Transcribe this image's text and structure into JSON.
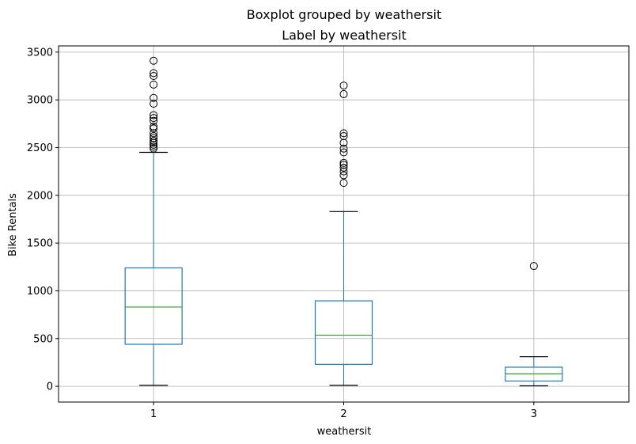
{
  "chart_data": {
    "type": "boxplot",
    "suptitle": "Boxplot grouped by weathersit",
    "title": "Label by weathersit",
    "xlabel": "weathersit",
    "ylabel": "Bike Rentals",
    "grid": true,
    "ylim": [
      -165,
      3565
    ],
    "yticks": [
      0,
      500,
      1000,
      1500,
      2000,
      2500,
      3000,
      3500
    ],
    "categories": [
      "1",
      "2",
      "3"
    ],
    "colors": {
      "box": "#1f77b4",
      "median": "#2ca02c",
      "grid": "#b0b0b0",
      "axis": "#000000"
    },
    "boxes": [
      {
        "category": "1",
        "whisker_low": 10,
        "q1": 440,
        "median": 830,
        "q3": 1240,
        "whisker_high": 2450,
        "outliers": [
          2490,
          2510,
          2530,
          2550,
          2570,
          2600,
          2620,
          2650,
          2700,
          2720,
          2780,
          2810,
          2840,
          2960,
          3020,
          3160,
          3250,
          3280,
          3410
        ]
      },
      {
        "category": "2",
        "whisker_low": 10,
        "q1": 230,
        "median": 535,
        "q3": 895,
        "whisker_high": 1830,
        "outliers": [
          2130,
          2210,
          2250,
          2290,
          2320,
          2340,
          2450,
          2490,
          2550,
          2620,
          2650,
          3060,
          3150
        ]
      },
      {
        "category": "3",
        "whisker_low": 5,
        "q1": 55,
        "median": 130,
        "q3": 200,
        "whisker_high": 310,
        "outliers": [
          1260
        ]
      }
    ]
  }
}
